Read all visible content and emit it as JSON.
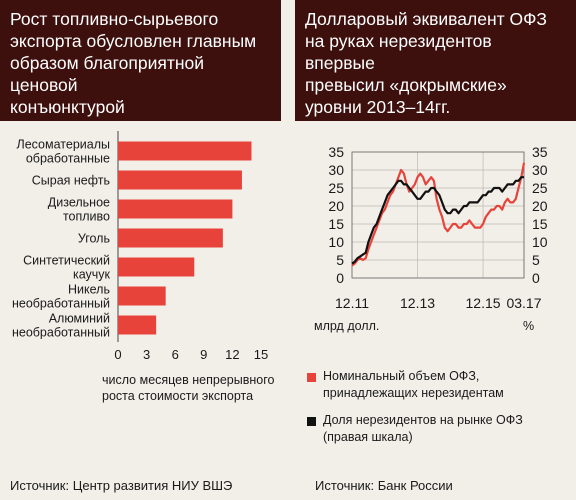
{
  "left": {
    "header_title": "Рост топливно-сырьевого\nэкспорта обусловлен главным\nобразом благоприятной ценовой\nконъюнктурой",
    "source": "Источник: Центр развития НИУ ВШЭ"
  },
  "right": {
    "header_title": "Долларовый эквивалент ОФЗ\nна руках нерезидентов впервые\nпревысил «докрымские»\nуровни 2013–14гг.",
    "source": "Источник: Банк России"
  },
  "chart_data": [
    {
      "type": "bar",
      "orientation": "horizontal",
      "categories": [
        "Лесоматериалы\nобработанные",
        "Сырая нефть",
        "Дизельное\nтопливо",
        "Уголь",
        "Синтетический\nкаучук",
        "Никель\nнеобработанный",
        "Алюминий\nнеобработанный"
      ],
      "values": [
        14,
        13,
        12,
        11,
        8,
        5,
        4
      ],
      "xlim": [
        0,
        15
      ],
      "xticks": [
        "0",
        "3",
        "6",
        "9",
        "12",
        "15"
      ],
      "xlabel": "число месяцев непрерывного\nроста стоимости экспорта",
      "bar_color": "#e8433b",
      "grid": false
    },
    {
      "type": "line",
      "xticks": [
        "12.11",
        "12.13",
        "12.15",
        "03.17"
      ],
      "y_left_ticks": [
        "0",
        "5",
        "10",
        "15",
        "20",
        "25",
        "30",
        "35"
      ],
      "y_right_ticks": [
        "0",
        "5",
        "10",
        "15",
        "20",
        "25",
        "30",
        "35"
      ],
      "ylim": [
        0,
        35
      ],
      "ylabel_left": "млрд долл.",
      "ylabel_right": "%",
      "grid": true,
      "series": [
        {
          "name": "Номинальный объем ОФЗ,\nпринадлежащих нерезидентам",
          "axis": "left",
          "color": "#e8433b",
          "x": [
            "12.11",
            "01.12",
            "02.12",
            "03.12",
            "04.12",
            "05.12",
            "06.12",
            "07.12",
            "08.12",
            "09.12",
            "10.12",
            "11.12",
            "12.12",
            "01.13",
            "02.13",
            "03.13",
            "04.13",
            "05.13",
            "06.13",
            "07.13",
            "08.13",
            "09.13",
            "10.13",
            "11.13",
            "12.13",
            "01.14",
            "02.14",
            "03.14",
            "04.14",
            "05.14",
            "06.14",
            "07.14",
            "08.14",
            "09.14",
            "10.14",
            "11.14",
            "12.14",
            "01.15",
            "02.15",
            "03.15",
            "04.15",
            "05.15",
            "06.15",
            "07.15",
            "08.15",
            "09.15",
            "10.15",
            "11.15",
            "12.15",
            "01.16",
            "02.16",
            "03.16",
            "04.16",
            "05.16",
            "06.16",
            "07.16",
            "08.16",
            "09.16",
            "10.16",
            "11.16",
            "12.16",
            "01.17",
            "02.17",
            "03.17"
          ],
          "values": [
            3.5,
            4,
            5,
            5.5,
            5,
            5.5,
            8,
            10,
            12,
            14,
            16,
            18,
            19,
            21,
            23,
            24,
            26,
            28,
            30,
            29,
            26,
            24,
            25,
            26,
            28,
            29,
            28,
            26,
            27,
            28,
            27,
            22,
            19,
            17,
            14,
            13,
            14,
            15,
            15,
            14,
            14,
            15,
            15,
            16,
            15,
            14,
            14,
            14,
            15,
            17,
            18,
            19,
            19,
            20,
            20,
            19,
            21,
            22,
            21,
            21,
            22,
            25,
            28,
            32
          ]
        },
        {
          "name": "Доля нерезидентов на рынке ОФЗ\n(правая шкала)",
          "axis": "right",
          "color": "#111111",
          "x": [
            "12.11",
            "01.12",
            "02.12",
            "03.12",
            "04.12",
            "05.12",
            "06.12",
            "07.12",
            "08.12",
            "09.12",
            "10.12",
            "11.12",
            "12.12",
            "01.13",
            "02.13",
            "03.13",
            "04.13",
            "05.13",
            "06.13",
            "07.13",
            "08.13",
            "09.13",
            "10.13",
            "11.13",
            "12.13",
            "01.14",
            "02.14",
            "03.14",
            "04.14",
            "05.14",
            "06.14",
            "07.14",
            "08.14",
            "09.14",
            "10.14",
            "11.14",
            "12.14",
            "01.15",
            "02.15",
            "03.15",
            "04.15",
            "05.15",
            "06.15",
            "07.15",
            "08.15",
            "09.15",
            "10.15",
            "11.15",
            "12.15",
            "01.16",
            "02.16",
            "03.16",
            "04.16",
            "05.16",
            "06.16",
            "07.16",
            "08.16",
            "09.16",
            "10.16",
            "11.16",
            "12.16",
            "01.17",
            "02.17",
            "03.17"
          ],
          "values": [
            4,
            4.5,
            5.5,
            6,
            6.5,
            7,
            10,
            12,
            14,
            15,
            17,
            19,
            21,
            23,
            24,
            25,
            26,
            27,
            27,
            26,
            26,
            25,
            24,
            23,
            22,
            22,
            23,
            24,
            24,
            25,
            25,
            24,
            23,
            21,
            19,
            18,
            18,
            19,
            19,
            18,
            19,
            20,
            20,
            21,
            21,
            21,
            21,
            22,
            23,
            23,
            24,
            24,
            25,
            25,
            25,
            24,
            25,
            26,
            26,
            26,
            27,
            27,
            28,
            28
          ]
        }
      ]
    }
  ]
}
